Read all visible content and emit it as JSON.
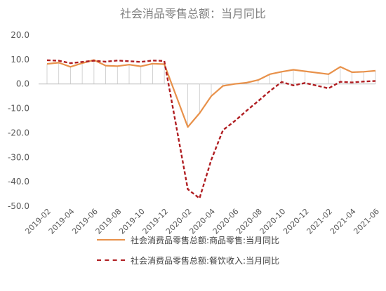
{
  "chart_data": {
    "type": "line",
    "title": "社会消品零售总额：当月同比",
    "xlabel": "",
    "ylabel": "",
    "ylim": [
      -50,
      20
    ],
    "yticks": [
      "20.0",
      "10.0",
      "0.0",
      "-10.0",
      "-20.0",
      "-30.0",
      "-40.0",
      "-50.0"
    ],
    "ytick_values": [
      20,
      10,
      0,
      -10,
      -20,
      -30,
      -40,
      -50
    ],
    "x": [
      "2019-02",
      "2019-03",
      "2019-04",
      "2019-05",
      "2019-06",
      "2019-07",
      "2019-08",
      "2019-09",
      "2019-10",
      "2019-11",
      "2019-12",
      "2020-01",
      "2020-02",
      "2020-03",
      "2020-04",
      "2020-05",
      "2020-06",
      "2020-07",
      "2020-08",
      "2020-09",
      "2020-10",
      "2020-11",
      "2020-12",
      "2021-01",
      "2021-02",
      "2021-03",
      "2021-04",
      "2021-05",
      "2021-06"
    ],
    "xtick_labels": [
      "2019-02",
      "2019-04",
      "2019-06",
      "2019-08",
      "2019-10",
      "2019-12",
      "2020-02",
      "2020-04",
      "2020-06",
      "2020-08",
      "2020-10",
      "2020-12",
      "2021-02",
      "2021-04",
      "2021-06"
    ],
    "grid": false,
    "legend_position": "bottom",
    "series": [
      {
        "name": "社会消费品零售总额:商品零售:当月同比",
        "color": "#e8914a",
        "style": "solid",
        "values": [
          8.2,
          8.7,
          7.0,
          8.5,
          9.8,
          7.5,
          7.3,
          7.9,
          7.2,
          8.3,
          8.1,
          null,
          -17.6,
          -12.0,
          -5.0,
          -0.8,
          0.0,
          0.5,
          1.6,
          4.0,
          5.0,
          5.8,
          5.2,
          null,
          4.0,
          7.0,
          4.8,
          5.0,
          5.4
        ]
      },
      {
        "name": "社会消费品零售总额:餐饮收入:当月同比",
        "color": "#b01e22",
        "style": "dashed",
        "values": [
          9.7,
          9.5,
          8.5,
          9.0,
          9.5,
          9.1,
          9.6,
          9.3,
          9.0,
          9.6,
          9.4,
          null,
          -43.1,
          -46.8,
          -31.1,
          -18.9,
          -15.2,
          -11.0,
          -7.0,
          -2.9,
          0.8,
          -0.6,
          0.4,
          null,
          -1.8,
          0.9,
          0.6,
          1.0,
          1.2
        ]
      }
    ]
  }
}
